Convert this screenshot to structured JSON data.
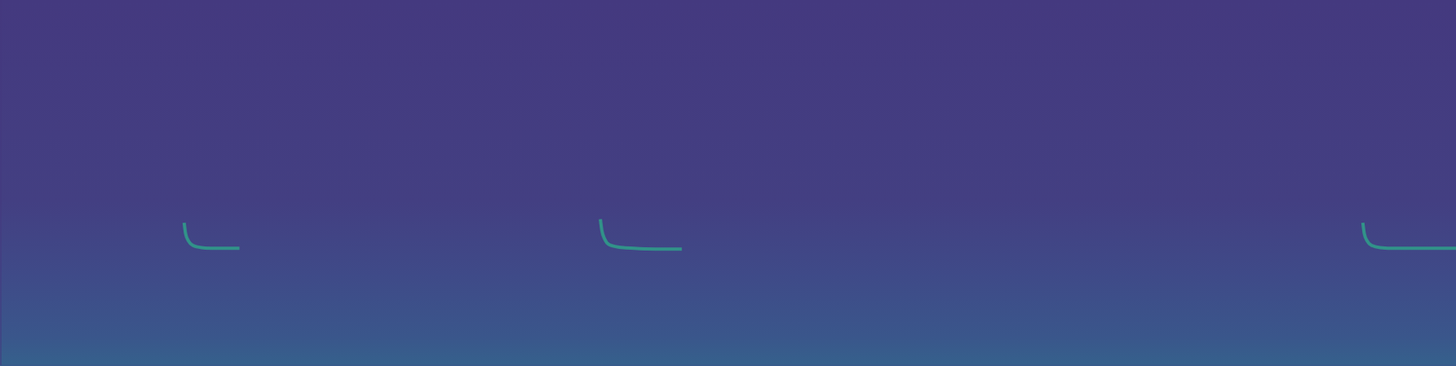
{
  "chart_data": {
    "type": "spectrogram",
    "xlim": [
      0,
      100
    ],
    "ylim": [
      0,
      100
    ],
    "xticks": [],
    "yticks": [],
    "tick_labels": false,
    "grid": false,
    "color": "#2fa08a",
    "series": [
      {
        "x": [
          12.6,
          12.7,
          12.9,
          13.2,
          13.8,
          14.6,
          15.5,
          16.4
        ],
        "values": [
          39,
          36,
          34,
          32.8,
          32.2,
          32,
          32,
          32
        ]
      },
      {
        "x": [
          41.2,
          41.3,
          41.5,
          41.8,
          42.5,
          43.5,
          45,
          46.8
        ],
        "values": [
          40,
          37,
          34.5,
          33,
          32.3,
          32,
          31.8,
          31.8
        ]
      },
      {
        "x": [
          93.6,
          93.7,
          93.9,
          94.2,
          94.8,
          95.8,
          97.5,
          100
        ],
        "values": [
          39,
          36,
          34,
          32.8,
          32.2,
          32,
          32,
          32
        ]
      }
    ]
  }
}
